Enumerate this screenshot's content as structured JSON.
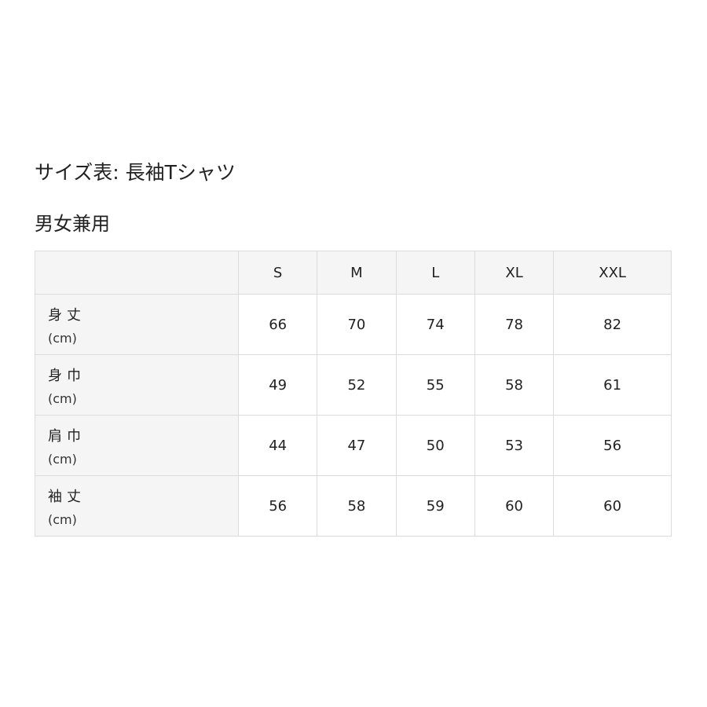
{
  "title": "サイズ表: 長袖Tシャツ",
  "subtitle": "男女兼用",
  "table": {
    "sizes": [
      "S",
      "M",
      "L",
      "XL",
      "XXL"
    ],
    "rows": [
      {
        "label": "身丈",
        "unit": "(cm)",
        "values": [
          "66",
          "70",
          "74",
          "78",
          "82"
        ]
      },
      {
        "label": "身巾",
        "unit": "(cm)",
        "values": [
          "49",
          "52",
          "55",
          "58",
          "61"
        ]
      },
      {
        "label": "肩巾",
        "unit": "(cm)",
        "values": [
          "44",
          "47",
          "50",
          "53",
          "56"
        ]
      },
      {
        "label": "袖丈",
        "unit": "(cm)",
        "values": [
          "56",
          "58",
          "59",
          "60",
          "60"
        ]
      }
    ]
  }
}
